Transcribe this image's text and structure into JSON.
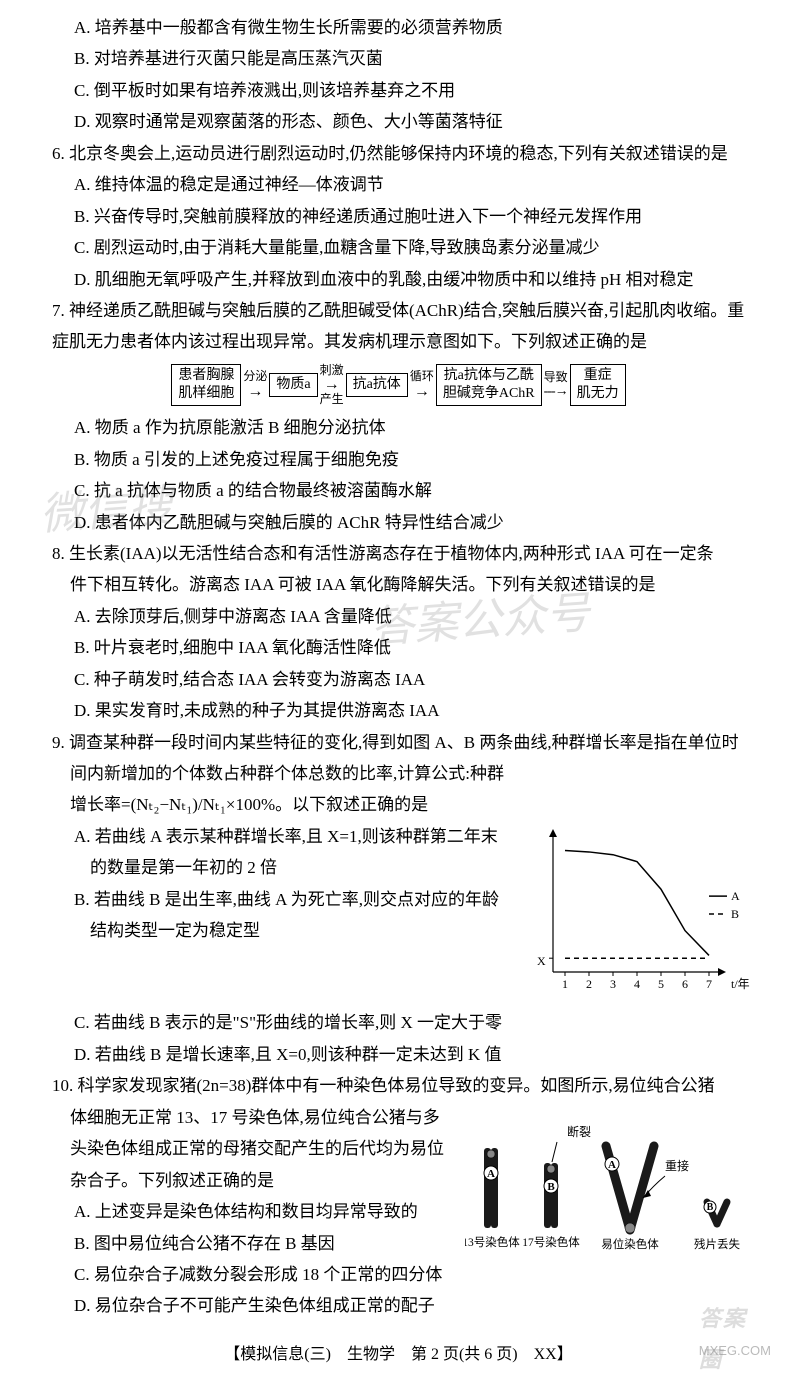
{
  "q5": {
    "optA": "A. 培养基中一般都含有微生物生长所需要的必须营养物质",
    "optB": "B. 对培养基进行灭菌只能是高压蒸汽灭菌",
    "optC": "C. 倒平板时如果有培养液溅出,则该培养基弃之不用",
    "optD": "D. 观察时通常是观察菌落的形态、颜色、大小等菌落特征"
  },
  "q6": {
    "stem": "6. 北京冬奥会上,运动员进行剧烈运动时,仍然能够保持内环境的稳态,下列有关叙述错误的是",
    "optA": "A. 维持体温的稳定是通过神经—体液调节",
    "optB": "B. 兴奋传导时,突触前膜释放的神经递质通过胞吐进入下一个神经元发挥作用",
    "optC": "C. 剧烈运动时,由于消耗大量能量,血糖含量下降,导致胰岛素分泌量减少",
    "optD": "D. 肌细胞无氧呼吸产生,并释放到血液中的乳酸,由缓冲物质中和以维持 pH 相对稳定"
  },
  "q7": {
    "stem": "7. 神经递质乙酰胆碱与突触后膜的乙酰胆碱受体(AChR)结合,突触后膜兴奋,引起肌肉收缩。重症肌无力患者体内该过程出现异常。其发病机理示意图如下。下列叙述正确的是",
    "flow": {
      "box1": "患者胸腺\n肌样细胞",
      "arr1_top": "分泌",
      "box2": "物质a",
      "arr2_top": "刺激",
      "arr2_bot": "产生",
      "box3": "抗a抗体",
      "arr3_top": "循环",
      "box4": "抗a抗体与乙酰\n胆碱竞争AChR",
      "arr4_top": "导致",
      "box5": "重症\n肌无力"
    },
    "optA": "A. 物质 a 作为抗原能激活 B 细胞分泌抗体",
    "optB": "B. 物质 a 引发的上述免疫过程属于细胞免疫",
    "optC": "C. 抗 a 抗体与物质 a 的结合物最终被溶菌酶水解",
    "optD": "D. 患者体内乙酰胆碱与突触后膜的 AChR 特异性结合减少"
  },
  "q8": {
    "stem1": "8. 生长素(IAA)以无活性结合态和有活性游离态存在于植物体内,两种形式 IAA 可在一定条",
    "stem2": "件下相互转化。游离态 IAA 可被 IAA 氧化酶降解失活。下列有关叙述错误的是",
    "optA": "A. 去除顶芽后,侧芽中游离态 IAA 含量降低",
    "optB": "B. 叶片衰老时,细胞中 IAA 氧化酶活性降低",
    "optC": "C. 种子萌发时,结合态 IAA 会转变为游离态 IAA",
    "optD": "D. 果实发育时,未成熟的种子为其提供游离态 IAA"
  },
  "q9": {
    "stem1": "9. 调查某种群一段时间内某些特征的变化,得到如图 A、B 两条曲线,种群增长率是指在单位时",
    "stem2": "间内新增加的个体数占种群个体总数的比率,计算公式:种群",
    "stem3": "增长率=(Nₜ₂−Nₜ₁)/Nₜ₁×100%。以下叙述正确的是",
    "optA": "A. 若曲线 A 表示某种群增长率,且 X=1,则该种群第二年末",
    "optA2": "的数量是第一年初的 2 倍",
    "optB": "B. 若曲线 B 是出生率,曲线 A 为死亡率,则交点对应的年龄",
    "optB2": "结构类型一定为稳定型",
    "optC": "C. 若曲线 B 表示的是\"S\"形曲线的增长率,则 X 一定大于零",
    "optD": "D. 若曲线 B 是增长速率,且 X=0,则该种群一定未达到 K 值",
    "chart": {
      "type": "line",
      "x_ticks": [
        "1",
        "2",
        "3",
        "4",
        "5",
        "6",
        "7"
      ],
      "x_label": "t/年",
      "y_label": "X",
      "seriesA": {
        "label": "A",
        "color": "#000",
        "dash": false,
        "points": [
          [
            1,
            0.88
          ],
          [
            2,
            0.87
          ],
          [
            3,
            0.85
          ],
          [
            4,
            0.8
          ],
          [
            5,
            0.6
          ],
          [
            6,
            0.3
          ],
          [
            7,
            0.12
          ]
        ]
      },
      "seriesB": {
        "label": "B",
        "color": "#000",
        "dash": true,
        "points": [
          [
            1,
            0.1
          ],
          [
            2,
            0.1
          ],
          [
            3,
            0.1
          ],
          [
            4,
            0.1
          ],
          [
            5,
            0.1
          ],
          [
            6,
            0.1
          ],
          [
            7,
            0.1
          ]
        ]
      },
      "background_color": "#ffffff",
      "axis_color": "#000000",
      "font_size": 12
    }
  },
  "q10": {
    "stem1": "10. 科学家发现家猪(2n=38)群体中有一种染色体易位导致的变异。如图所示,易位纯合公猪",
    "stem2": "体细胞无正常 13、17 号染色体,易位纯合公猪与多",
    "stem3": "头染色体组成正常的母猪交配产生的后代均为易位",
    "stem4": "杂合子。下列叙述正确的是",
    "optA": "A. 上述变异是染色体结构和数目均异常导致的",
    "optB": "B. 图中易位纯合公猪不存在 B 基因",
    "optC": "C. 易位杂合子减数分裂会形成 18 个正常的四分体",
    "optD": "D. 易位杂合子不可能产生染色体组成正常的配子",
    "diagram": {
      "labels": {
        "break": "断裂",
        "rejoin": "重接",
        "chr13": "13号染色体",
        "chr17": "17号染色体",
        "trans": "易位染色体",
        "lost": "残片丢失",
        "geneA": "A",
        "geneB": "B"
      },
      "colors": {
        "chr": "#1a1a1a",
        "label": "#000000",
        "circle": "#ffffff"
      }
    }
  },
  "footer": "【模拟信息(三)　生物学　第 2 页(共 6 页)　XX】",
  "watermarks": {
    "wm1": "微信搜",
    "wm2": "答案公众号"
  },
  "brand": "MXEG.COM",
  "logo": "答案圈"
}
